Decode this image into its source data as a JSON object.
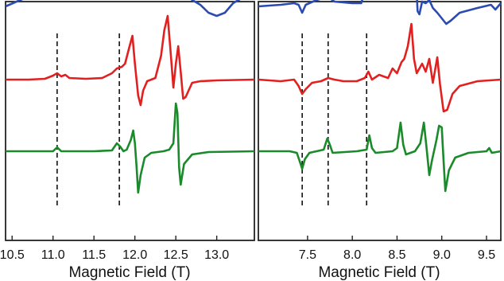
{
  "chart_data": [
    {
      "type": "line",
      "xlabel": "Magnetic Field (T)",
      "ylabel": "",
      "xlim": [
        10.42,
        13.46
      ],
      "x_ticks": [
        "10.5",
        "11.0",
        "11.5",
        "12.0",
        "12.5",
        "13.0"
      ],
      "y_ticks": "none",
      "grid": false,
      "legend": "none",
      "dashed_markers": [
        11.05,
        11.81
      ],
      "series": [
        {
          "color": "#2b4bb0",
          "offset": 240,
          "points": [
            [
              10.42,
              0
            ],
            [
              10.6,
              8
            ],
            [
              10.8,
              16
            ],
            [
              10.95,
              22
            ],
            [
              11.05,
              26
            ],
            [
              11.15,
              22
            ],
            [
              11.3,
              18
            ],
            [
              11.45,
              20
            ],
            [
              11.6,
              28
            ],
            [
              11.7,
              42
            ],
            [
              11.76,
              78
            ],
            [
              11.82,
              80
            ],
            [
              11.87,
              68
            ],
            [
              11.92,
              50
            ],
            [
              11.98,
              36
            ],
            [
              12.05,
              32
            ],
            [
              12.1,
              30
            ],
            [
              12.15,
              26
            ],
            [
              12.22,
              34
            ],
            [
              12.3,
              58
            ],
            [
              12.37,
              88
            ],
            [
              12.42,
              93
            ],
            [
              12.47,
              84
            ],
            [
              12.52,
              64
            ],
            [
              12.58,
              32
            ],
            [
              12.62,
              20
            ],
            [
              12.7,
              8
            ],
            [
              12.8,
              2
            ],
            [
              12.9,
              -8
            ],
            [
              13.0,
              -12
            ],
            [
              13.1,
              -8
            ],
            [
              13.2,
              4
            ],
            [
              13.3,
              10
            ],
            [
              13.46,
              12
            ]
          ]
        },
        {
          "color": "#e32020",
          "offset": 148,
          "points": [
            [
              10.42,
              0
            ],
            [
              10.7,
              0
            ],
            [
              10.9,
              1
            ],
            [
              11.0,
              5
            ],
            [
              11.05,
              8
            ],
            [
              11.1,
              4
            ],
            [
              11.15,
              6
            ],
            [
              11.2,
              2
            ],
            [
              11.4,
              1
            ],
            [
              11.6,
              2
            ],
            [
              11.72,
              8
            ],
            [
              11.78,
              14
            ],
            [
              11.84,
              16
            ],
            [
              11.88,
              20
            ],
            [
              11.93,
              40
            ],
            [
              11.97,
              55
            ],
            [
              12.0,
              20
            ],
            [
              12.04,
              -20
            ],
            [
              12.07,
              -32
            ],
            [
              12.1,
              -14
            ],
            [
              12.15,
              -2
            ],
            [
              12.25,
              2
            ],
            [
              12.32,
              30
            ],
            [
              12.36,
              62
            ],
            [
              12.4,
              80
            ],
            [
              12.44,
              30
            ],
            [
              12.47,
              -10
            ],
            [
              12.5,
              20
            ],
            [
              12.53,
              42
            ],
            [
              12.56,
              10
            ],
            [
              12.59,
              -24
            ],
            [
              12.62,
              -22
            ],
            [
              12.7,
              -4
            ],
            [
              12.8,
              -2
            ],
            [
              13.0,
              -1
            ],
            [
              13.46,
              0
            ]
          ]
        },
        {
          "color": "#1a8a2a",
          "offset": 58,
          "points": [
            [
              10.42,
              0
            ],
            [
              11.0,
              0
            ],
            [
              11.05,
              5
            ],
            [
              11.1,
              0
            ],
            [
              11.5,
              0
            ],
            [
              11.72,
              1
            ],
            [
              11.78,
              10
            ],
            [
              11.82,
              6
            ],
            [
              11.86,
              0
            ],
            [
              11.9,
              2
            ],
            [
              11.95,
              14
            ],
            [
              11.98,
              26
            ],
            [
              12.0,
              10
            ],
            [
              12.02,
              -18
            ],
            [
              12.04,
              -52
            ],
            [
              12.07,
              -30
            ],
            [
              12.12,
              -8
            ],
            [
              12.2,
              -2
            ],
            [
              12.35,
              0
            ],
            [
              12.42,
              2
            ],
            [
              12.47,
              10
            ],
            [
              12.5,
              60
            ],
            [
              12.52,
              48
            ],
            [
              12.54,
              -20
            ],
            [
              12.56,
              -42
            ],
            [
              12.6,
              -16
            ],
            [
              12.7,
              -4
            ],
            [
              12.9,
              -1
            ],
            [
              13.46,
              0
            ]
          ]
        }
      ]
    },
    {
      "type": "line",
      "xlabel": "Magnetic Field (T)",
      "ylabel": "",
      "xlim": [
        6.95,
        9.66
      ],
      "x_ticks": [
        "7.5",
        "8.0",
        "8.5",
        "9.0",
        "9.5"
      ],
      "y_ticks": "none",
      "grid": false,
      "legend": "none",
      "dashed_markers": [
        7.44,
        7.73,
        8.16
      ],
      "series": [
        {
          "color": "#2b4bb0",
          "offset": 240,
          "points": [
            [
              6.95,
              0
            ],
            [
              7.2,
              2
            ],
            [
              7.35,
              4
            ],
            [
              7.4,
              2
            ],
            [
              7.44,
              -8
            ],
            [
              7.48,
              2
            ],
            [
              7.6,
              8
            ],
            [
              7.73,
              12
            ],
            [
              7.8,
              6
            ],
            [
              8.0,
              4
            ],
            [
              8.1,
              4
            ],
            [
              8.16,
              26
            ],
            [
              8.2,
              14
            ],
            [
              8.3,
              22
            ],
            [
              8.4,
              18
            ],
            [
              8.5,
              18
            ],
            [
              8.56,
              14
            ],
            [
              8.6,
              24
            ],
            [
              8.63,
              36
            ],
            [
              8.66,
              44
            ],
            [
              8.69,
              56
            ],
            [
              8.71,
              40
            ],
            [
              8.73,
              -6
            ],
            [
              8.75,
              -10
            ],
            [
              8.78,
              6
            ],
            [
              8.82,
              4
            ],
            [
              8.86,
              8
            ],
            [
              8.9,
              -2
            ],
            [
              8.95,
              -8
            ],
            [
              9.05,
              -22
            ],
            [
              9.1,
              -18
            ],
            [
              9.2,
              -8
            ],
            [
              9.4,
              -2
            ],
            [
              9.55,
              2
            ],
            [
              9.6,
              -4
            ],
            [
              9.66,
              4
            ]
          ]
        },
        {
          "color": "#e32020",
          "offset": 148,
          "points": [
            [
              6.95,
              0
            ],
            [
              7.2,
              -2
            ],
            [
              7.35,
              0
            ],
            [
              7.4,
              -8
            ],
            [
              7.44,
              -18
            ],
            [
              7.48,
              -12
            ],
            [
              7.55,
              -4
            ],
            [
              7.65,
              -2
            ],
            [
              7.73,
              2
            ],
            [
              7.8,
              0
            ],
            [
              7.9,
              -2
            ],
            [
              8.05,
              -2
            ],
            [
              8.14,
              2
            ],
            [
              8.18,
              10
            ],
            [
              8.22,
              0
            ],
            [
              8.3,
              6
            ],
            [
              8.4,
              2
            ],
            [
              8.45,
              14
            ],
            [
              8.5,
              8
            ],
            [
              8.55,
              22
            ],
            [
              8.58,
              26
            ],
            [
              8.62,
              42
            ],
            [
              8.66,
              70
            ],
            [
              8.69,
              26
            ],
            [
              8.72,
              8
            ],
            [
              8.78,
              20
            ],
            [
              8.82,
              10
            ],
            [
              8.86,
              26
            ],
            [
              8.9,
              -4
            ],
            [
              8.95,
              28
            ],
            [
              8.98,
              -6
            ],
            [
              9.02,
              -40
            ],
            [
              9.06,
              -38
            ],
            [
              9.12,
              -18
            ],
            [
              9.2,
              -8
            ],
            [
              9.4,
              -2
            ],
            [
              9.66,
              0
            ]
          ]
        },
        {
          "color": "#1a8a2a",
          "offset": 58,
          "points": [
            [
              6.95,
              0
            ],
            [
              7.3,
              0
            ],
            [
              7.38,
              -2
            ],
            [
              7.41,
              -12
            ],
            [
              7.44,
              -22
            ],
            [
              7.47,
              -10
            ],
            [
              7.52,
              -2
            ],
            [
              7.6,
              0
            ],
            [
              7.68,
              2
            ],
            [
              7.72,
              16
            ],
            [
              7.75,
              8
            ],
            [
              7.78,
              -2
            ],
            [
              8.05,
              0
            ],
            [
              8.16,
              2
            ],
            [
              8.19,
              20
            ],
            [
              8.22,
              4
            ],
            [
              8.26,
              -2
            ],
            [
              8.45,
              0
            ],
            [
              8.5,
              4
            ],
            [
              8.54,
              36
            ],
            [
              8.57,
              8
            ],
            [
              8.6,
              -4
            ],
            [
              8.7,
              0
            ],
            [
              8.76,
              10
            ],
            [
              8.8,
              36
            ],
            [
              8.83,
              4
            ],
            [
              8.86,
              -30
            ],
            [
              8.89,
              -12
            ],
            [
              8.94,
              14
            ],
            [
              8.97,
              32
            ],
            [
              9.0,
              30
            ],
            [
              9.02,
              -12
            ],
            [
              9.04,
              -50
            ],
            [
              9.08,
              -24
            ],
            [
              9.15,
              -8
            ],
            [
              9.3,
              -2
            ],
            [
              9.5,
              0
            ],
            [
              9.53,
              4
            ],
            [
              9.56,
              -2
            ],
            [
              9.66,
              0
            ]
          ]
        }
      ]
    }
  ]
}
